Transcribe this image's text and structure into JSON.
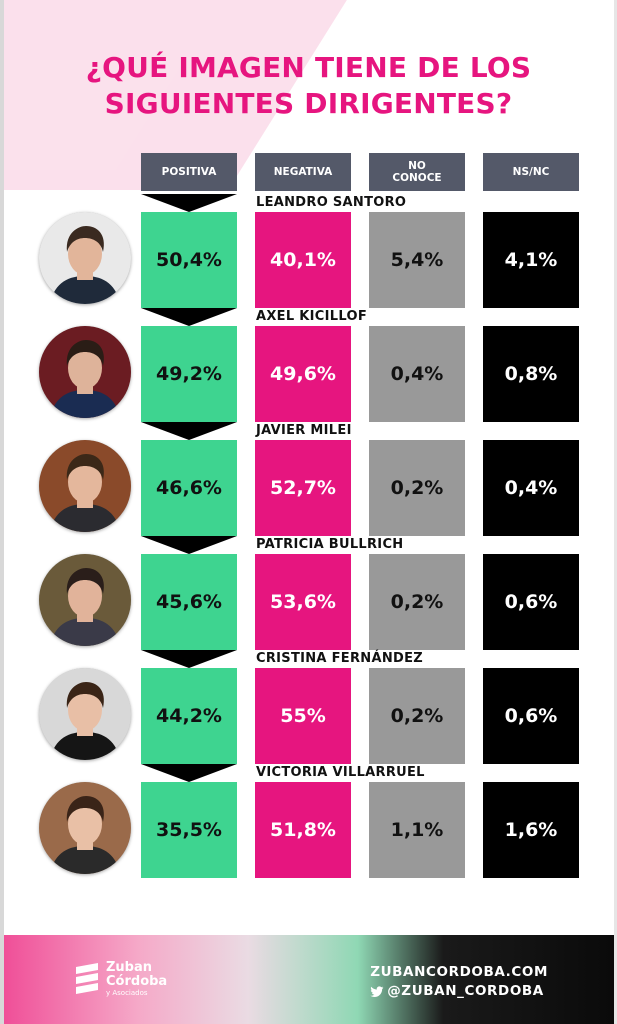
{
  "title": {
    "line1": "¿QUÉ IMAGEN TIENE DE LOS",
    "line2": "SIGUIENTES DIRIGENTES?"
  },
  "colors": {
    "positiva": "#3ed490",
    "negativa": "#e6157f",
    "no_conoce": "#999999",
    "ns_nc": "#000000",
    "header": "#545969",
    "title": "#e6157f"
  },
  "chart_data": {
    "type": "table",
    "columns": [
      "POSITIVA",
      "NEGATIVA",
      "NO\nCONOCE",
      "NS/NC"
    ],
    "rows": [
      {
        "name": "LEANDRO SANTORO",
        "values": [
          "50,4%",
          "40,1%",
          "5,4%",
          "4,1%"
        ]
      },
      {
        "name": "AXEL KICILLOF",
        "values": [
          "49,2%",
          "49,6%",
          "0,4%",
          "0,8%"
        ]
      },
      {
        "name": "JAVIER MILEI",
        "values": [
          "46,6%",
          "52,7%",
          "0,2%",
          "0,4%"
        ]
      },
      {
        "name": "PATRICIA BULLRICH",
        "values": [
          "45,6%",
          "53,6%",
          "0,2%",
          "0,6%"
        ]
      },
      {
        "name": "CRISTINA FERNÁNDEZ",
        "values": [
          "44,2%",
          "55%",
          "0,2%",
          "0,6%"
        ]
      },
      {
        "name": "VICTORIA VILLARRUEL",
        "values": [
          "35,5%",
          "51,8%",
          "1,1%",
          "1,6%"
        ]
      }
    ]
  },
  "portraits": [
    {
      "bg": "#e9e9e9",
      "skin": "#e2b59a",
      "hair": "#3a2a20",
      "suit": "#1f2a3a"
    },
    {
      "bg": "#6b1c22",
      "skin": "#deb39a",
      "hair": "#2a1d16",
      "suit": "#1a2c52"
    },
    {
      "bg": "#8a4a2a",
      "skin": "#e4b79c",
      "hair": "#3b2818",
      "suit": "#2b2b30"
    },
    {
      "bg": "#6a5a3a",
      "skin": "#e1b39a",
      "hair": "#2a1e1a",
      "suit": "#3a3a48"
    },
    {
      "bg": "#d8d8d8",
      "skin": "#e8bfa6",
      "hair": "#3a2416",
      "suit": "#151515"
    },
    {
      "bg": "#9a6a4a",
      "skin": "#e9c0a6",
      "hair": "#3a2418",
      "suit": "#2a2a2a"
    }
  ],
  "footer": {
    "brand_line1": "Zuban",
    "brand_line2": "Córdoba",
    "brand_sub": "y Asociados",
    "website": "ZUBANCORDOBA.COM",
    "twitter": "@ZUBAN_CORDOBA",
    "twitter_icon": "twitter-bird-icon",
    "logo_icon": "zuban-cordoba-logo-icon"
  }
}
